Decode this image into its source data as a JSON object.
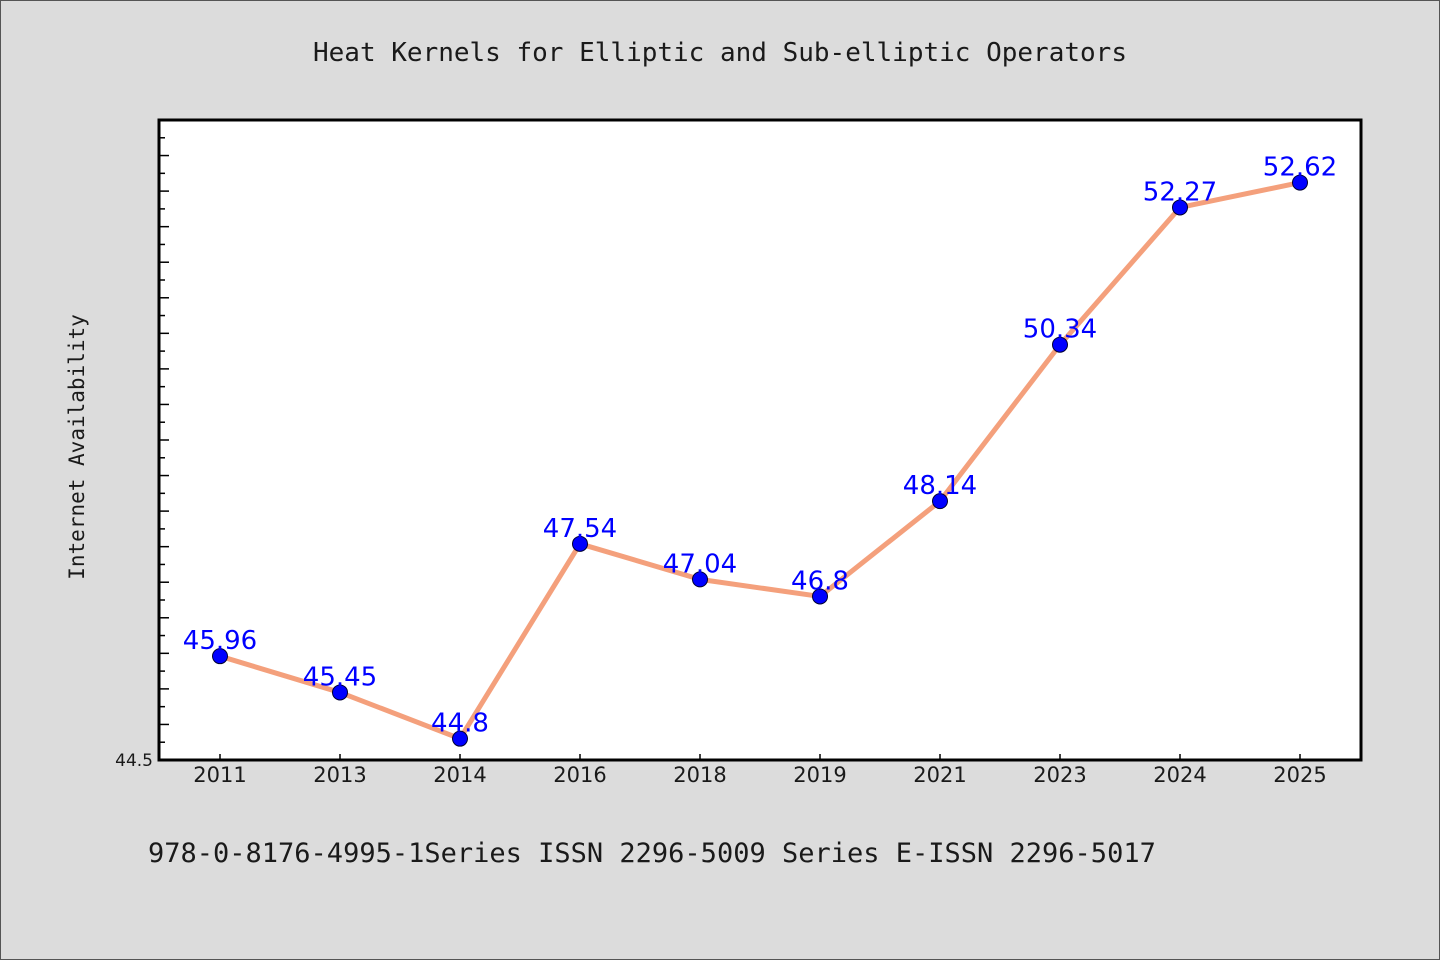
{
  "colors": {
    "background": "#dcdcdc",
    "plot_background": "#ffffff",
    "line": "#f4a07c",
    "marker": "#0000ff",
    "data_label": "#0000ff",
    "text": "#1a1a1a"
  },
  "footer": {
    "text": "978-0-8176-4995-1Series ISSN 2296-5009 Series E-ISSN 2296-5017"
  },
  "chart_data": {
    "type": "line",
    "title": "Heat Kernels for Elliptic and Sub-elliptic Operators",
    "xlabel": "",
    "ylabel": "Internet Availability",
    "categories": [
      "2011",
      "2013",
      "2014",
      "2016",
      "2018",
      "2019",
      "2021",
      "2023",
      "2024",
      "2025"
    ],
    "values": [
      45.96,
      45.45,
      44.8,
      47.54,
      47.04,
      46.8,
      48.14,
      50.34,
      52.27,
      52.62
    ],
    "data_labels": [
      "45.96",
      "45.45",
      "44.8",
      "47.54",
      "47.04",
      "46.8",
      "48.14",
      "50.34",
      "52.27",
      "52.62"
    ],
    "y_tick_label": "44.5",
    "ylim": [
      44.5,
      53.5
    ],
    "grid": false,
    "legend": "none"
  }
}
